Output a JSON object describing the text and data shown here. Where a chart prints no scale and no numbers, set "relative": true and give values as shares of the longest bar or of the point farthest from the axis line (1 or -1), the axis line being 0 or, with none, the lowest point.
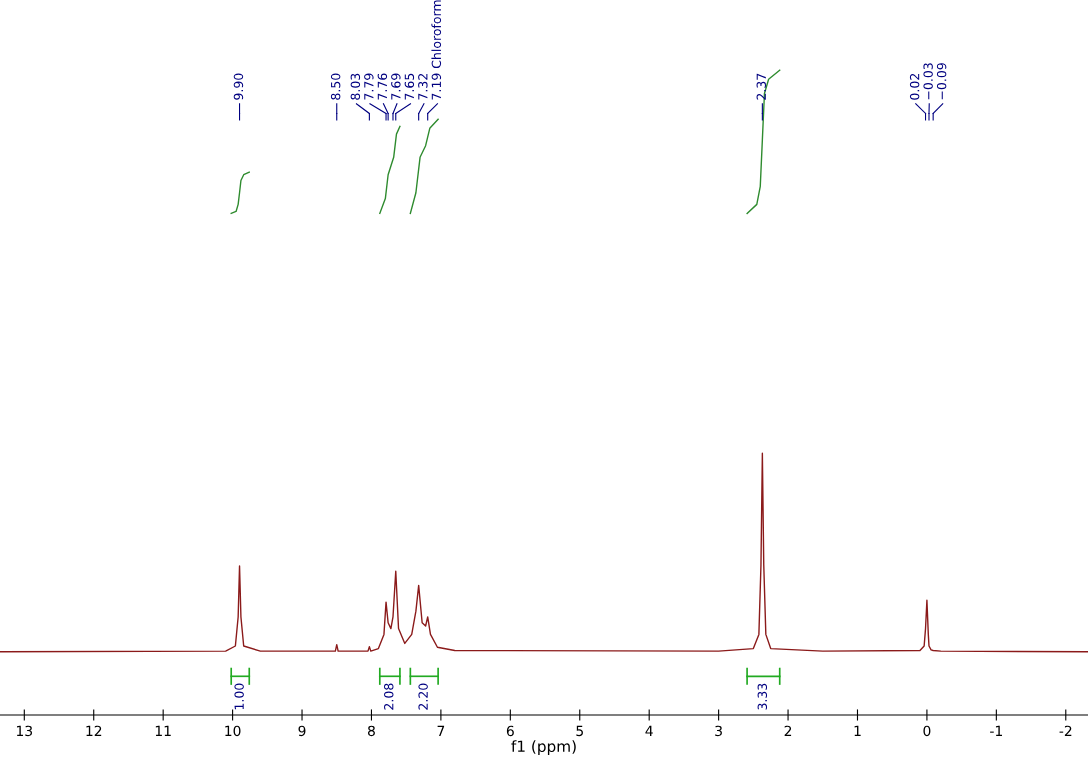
{
  "chart_data": {
    "type": "line",
    "relative": true,
    "xlabel": "f1 (ppm)",
    "xlim": [
      13.35,
      -2.32
    ],
    "xticks": [
      13,
      12,
      11,
      10,
      9,
      8,
      7,
      6,
      5,
      4,
      3,
      2,
      1,
      0,
      {
        "value": -1,
        "label": "-1"
      },
      {
        "value": -2,
        "label": "-2"
      }
    ],
    "tick_labels": "x",
    "grid": false,
    "legend": false,
    "series": [
      {
        "color": "#8b1a1a",
        "x": [
          13.35,
          10.1,
          9.96,
          9.92,
          9.9,
          9.88,
          9.84,
          9.6,
          8.52,
          8.5,
          8.48,
          8.05,
          8.03,
          8.01,
          7.9,
          7.82,
          7.79,
          7.76,
          7.72,
          7.69,
          7.65,
          7.61,
          7.52,
          7.42,
          7.36,
          7.32,
          7.27,
          7.22,
          7.19,
          7.15,
          7.05,
          6.8,
          3.0,
          2.5,
          2.42,
          2.39,
          2.37,
          2.35,
          2.32,
          2.25,
          1.5,
          0.1,
          0.04,
          0.02,
          0.0,
          -0.02,
          -0.03,
          -0.06,
          -0.09,
          -0.2,
          -2.32
        ],
        "values": [
          0.098,
          0.099,
          0.107,
          0.152,
          0.231,
          0.152,
          0.107,
          0.099,
          0.099,
          0.109,
          0.099,
          0.099,
          0.106,
          0.099,
          0.103,
          0.125,
          0.175,
          0.143,
          0.134,
          0.152,
          0.223,
          0.134,
          0.111,
          0.125,
          0.161,
          0.201,
          0.143,
          0.138,
          0.152,
          0.125,
          0.105,
          0.1,
          0.099,
          0.103,
          0.125,
          0.233,
          0.406,
          0.233,
          0.125,
          0.103,
          0.099,
          0.1,
          0.107,
          0.134,
          0.178,
          0.125,
          0.107,
          0.101,
          0.1,
          0.099,
          0.098
        ]
      },
      {
        "color": "#2e8b2e",
        "x": [
          10.02,
          9.95,
          9.92,
          9.9,
          9.88,
          9.84,
          9.76
        ],
        "values": [
          0.778,
          0.781,
          0.792,
          0.81,
          0.829,
          0.838,
          0.842
        ]
      },
      {
        "color": "#2e8b2e",
        "x": [
          7.88,
          7.8,
          7.76,
          7.68,
          7.64,
          7.59
        ],
        "values": [
          0.778,
          0.801,
          0.838,
          0.865,
          0.901,
          0.913
        ]
      },
      {
        "color": "#2e8b2e",
        "x": [
          7.44,
          7.36,
          7.3,
          7.22,
          7.16,
          7.04
        ],
        "values": [
          0.778,
          0.81,
          0.865,
          0.883,
          0.91,
          0.924
        ]
      },
      {
        "color": "#2e8b2e",
        "x": [
          2.59,
          2.45,
          2.4,
          2.37,
          2.34,
          2.28,
          2.12
        ],
        "values": [
          0.778,
          0.792,
          0.82,
          0.892,
          0.964,
          0.986,
          1.0
        ]
      }
    ],
    "annotations": [
      {
        "text": "9.90",
        "x": 9.9
      },
      {
        "text": "8.50",
        "x": 8.5
      },
      {
        "text": "8.03",
        "x": 8.03
      },
      {
        "text": "7.79",
        "x": 7.79
      },
      {
        "text": "7.76",
        "x": 7.76
      },
      {
        "text": "7.69",
        "x": 7.69
      },
      {
        "text": "7.65",
        "x": 7.65
      },
      {
        "text": "7.32",
        "x": 7.32
      },
      {
        "text": "7.19 Chloroform",
        "x": 7.19
      },
      {
        "text": "2.37",
        "x": 2.37
      },
      {
        "text": "0.02",
        "x": 0.02
      },
      {
        "text": "−0.03",
        "x": -0.03
      },
      {
        "text": "−0.09",
        "x": -0.09
      },
      "1.00",
      "2.08",
      "2.20",
      "3.33"
    ]
  }
}
